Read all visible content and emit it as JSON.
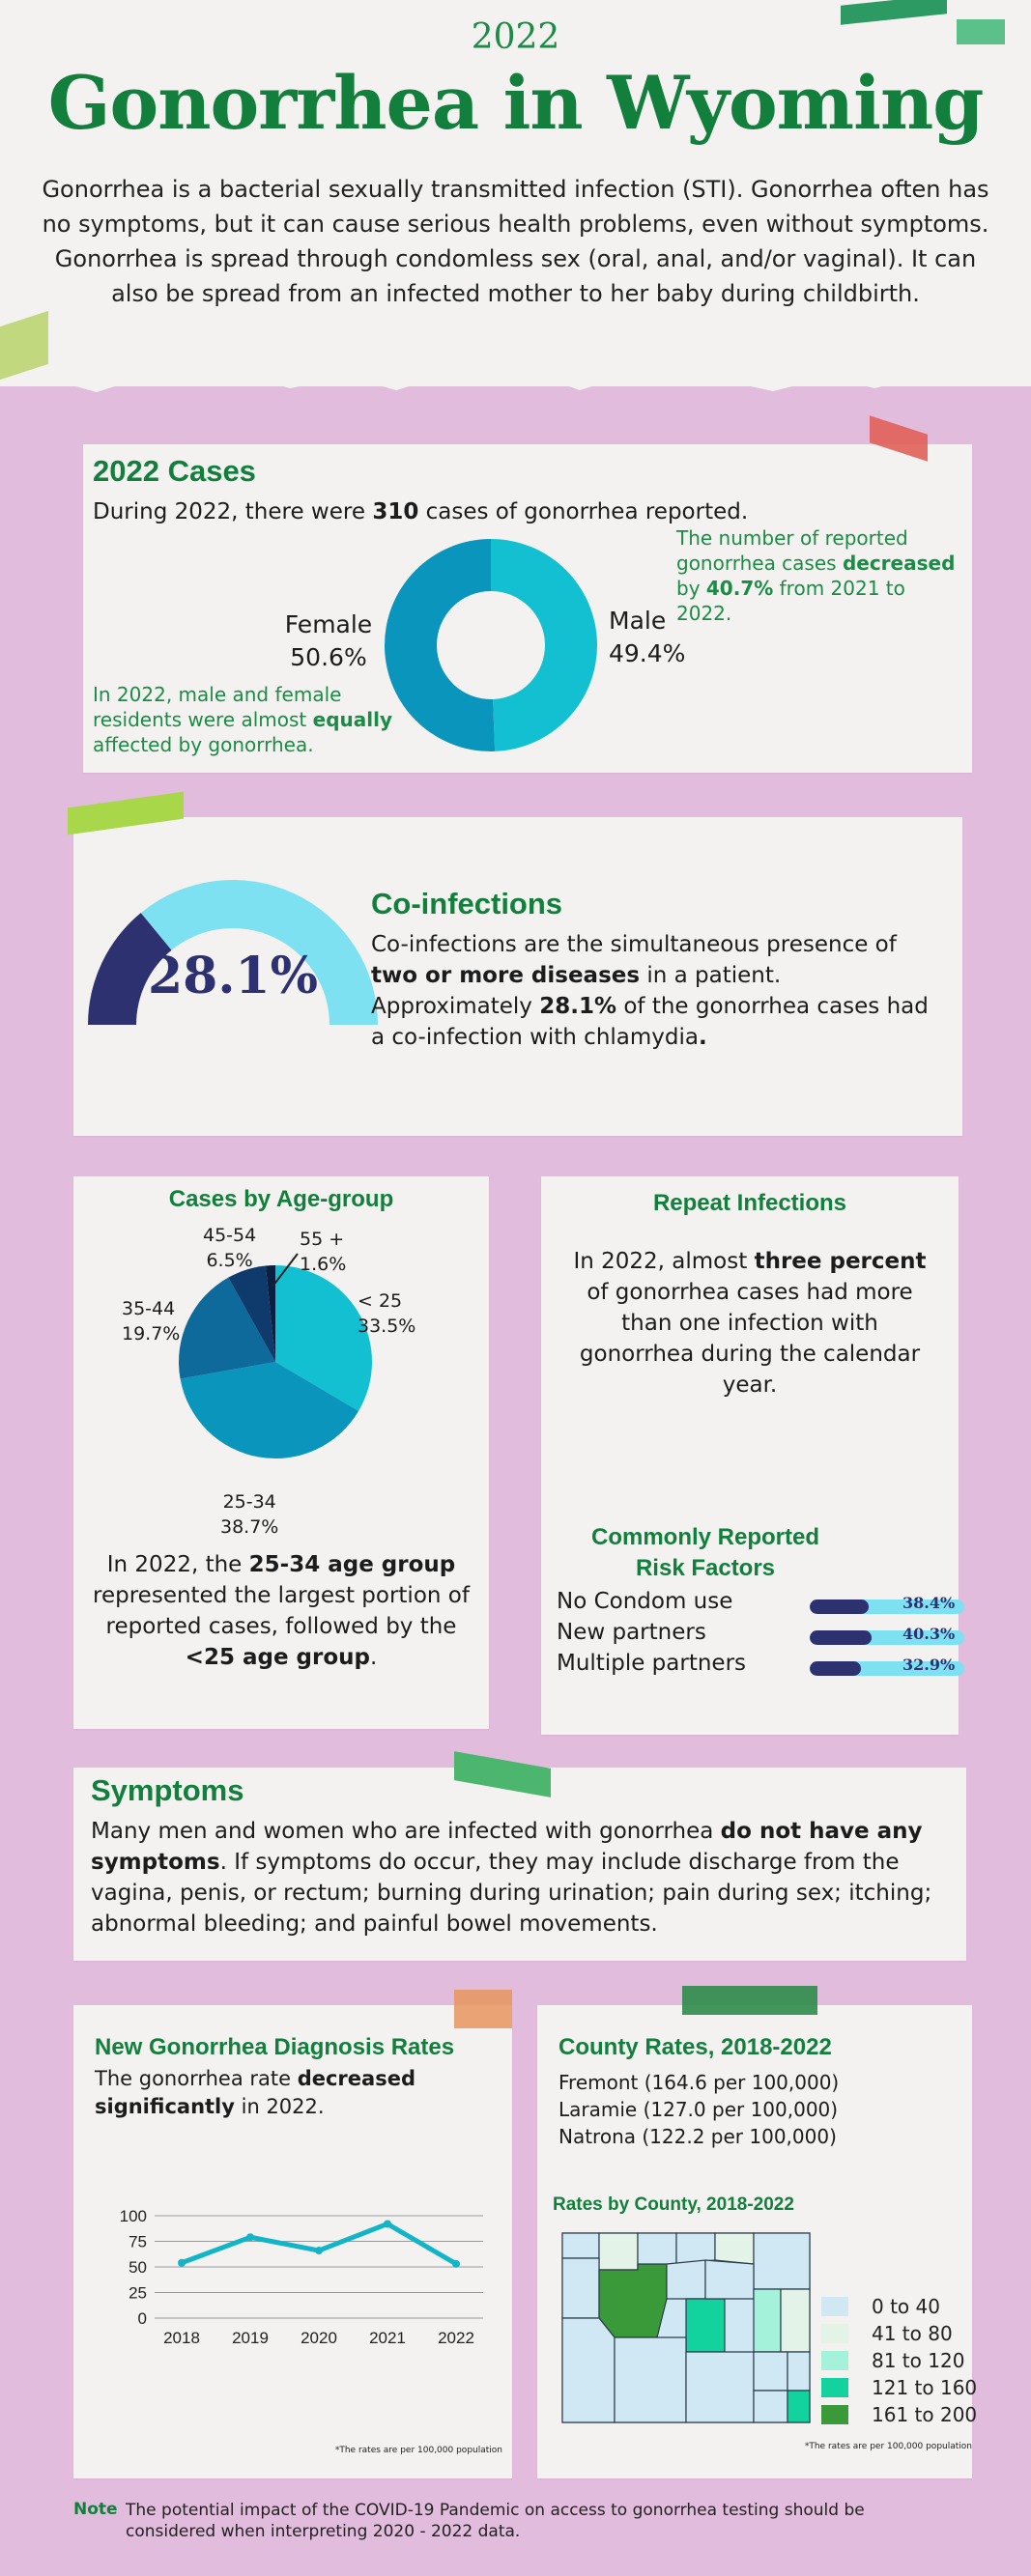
{
  "header": {
    "year": "2022",
    "title": "Gonorrhea in Wyoming",
    "intro": "Gonorrhea is a bacterial sexually transmitted infection (STI). Gonorrhea often has no symptoms, but it can cause serious health problems, even without symptoms. Gonorrhea is spread through condomless sex (oral, anal, and/or vaginal). It can also be spread from an infected mother to her baby during childbirth."
  },
  "cases": {
    "heading": "2022 Cases",
    "line_pre": "During 2022, there were ",
    "line_num": "310",
    "line_post": " cases of gonorrhea  reported.",
    "decrease_pre": "The number of reported gonorrhea cases ",
    "decrease_bold": "decreased",
    "decrease_mid": " by ",
    "decrease_pct": "40.7%",
    "decrease_post": " from 2021 to 2022.",
    "female_label": "Female",
    "female_value": "50.6%",
    "male_label": "Male",
    "male_value": "49.4%",
    "equal_pre": "In 2022, male and female residents were almost ",
    "equal_bold": "equally",
    "equal_post": " affected by gonorrhea.",
    "female_pct": 50.6,
    "male_pct": 49.4,
    "colors": {
      "female": "#0a95bd",
      "male": "#12c0d2"
    }
  },
  "coinfections": {
    "heading": "Co-infections",
    "gauge_value_text": "28.1%",
    "gauge_pct": 28.1,
    "p1": "Co-infections are the simultaneous presence of ",
    "p1_bold": "two or more diseases",
    "p2": " in a patient. Approximately ",
    "p2_bold": "28.1%",
    "p3": " of the gonorrhea cases had a co-infection with chlamydia",
    "p3_end": ".",
    "colors": {
      "filled": "#2e3170",
      "rest": "#7ee1f2"
    }
  },
  "age": {
    "heading": "Cases by Age-group",
    "groups": [
      {
        "label": "< 25",
        "value": "33.5%",
        "pct": 33.5,
        "color": "#12c0d2"
      },
      {
        "label": "25-34",
        "value": "38.7%",
        "pct": 38.7,
        "color": "#0a95bd"
      },
      {
        "label": "35-44",
        "value": "19.7%",
        "pct": 19.7,
        "color": "#0d6a9a"
      },
      {
        "label": "45-54",
        "value": "6.5%",
        "pct": 6.5,
        "color": "#0f3b6c"
      },
      {
        "label": "55 +",
        "value": "1.6%",
        "pct": 1.6,
        "color": "#0b1f40"
      }
    ],
    "text_pre": "In 2022, the ",
    "text_b1": "25-34 age group",
    "text_mid": " represented the largest portion of reported cases, followed by the ",
    "text_b2": "<25 age group",
    "text_end": "."
  },
  "repeat": {
    "heading": "Repeat Infections",
    "t1": "In 2022, almost ",
    "t_bold": "three percent",
    "t2": " of gonorrhea cases had more than one infection with gonorrhea during the calendar year."
  },
  "risk": {
    "heading_l1": "Commonly Reported",
    "heading_l2": "Risk Factors",
    "items": [
      {
        "label": "No Condom use",
        "value": "38.4%",
        "pct": 38.4
      },
      {
        "label": "New partners",
        "value": "40.3%",
        "pct": 40.3
      },
      {
        "label": "Multiple partners",
        "value": "32.9%",
        "pct": 32.9
      }
    ]
  },
  "symptoms": {
    "heading": "Symptoms",
    "t1": "Many men and women who are infected with gonorrhea ",
    "t_bold": "do not have any symptoms",
    "t2": ". If symptoms do occur, they may include discharge from the vagina, penis, or rectum; burning during urination; pain during sex;  itching; abnormal bleeding; and painful bowel movements."
  },
  "rates": {
    "heading": "New Gonorrhea Diagnosis Rates",
    "t1": "The gonorrhea rate ",
    "t_bold": "decreased significantly",
    "t2": " in 2022.",
    "footnote": "*The rates are per 100,000 population"
  },
  "chart_data": {
    "type": "line",
    "x": [
      "2018",
      "2019",
      "2020",
      "2021",
      "2022"
    ],
    "series": [
      {
        "values": [
          54,
          79,
          66,
          92,
          53
        ]
      }
    ],
    "ylim": [
      0,
      100
    ],
    "yticks": [
      "0",
      "25",
      "50",
      "75",
      "100"
    ],
    "color": "#12b5c8"
  },
  "county": {
    "heading": "County Rates, 2018-2022",
    "items": [
      "Fremont (164.6 per 100,000)",
      "Laramie (127.0 per 100,000)",
      "Natrona (122.2 per 100,000)"
    ],
    "map_heading": "Rates by County, 2018-2022",
    "legend": [
      {
        "label": "0 to 40",
        "color": "#cfe8f4"
      },
      {
        "label": "41 to 80",
        "color": "#e3f3e8"
      },
      {
        "label": "81 to 120",
        "color": "#a3f2d9"
      },
      {
        "label": "121 to 160",
        "color": "#12d39e"
      },
      {
        "label": "161 to 200",
        "color": "#3a9a3a"
      }
    ],
    "footnote": "*The rates are per 100,000 population"
  },
  "note": {
    "label": "Note",
    "text": "The potential impact of the COVID-19 Pandemic on access to gonorrhea testing should be considered when interpreting 2020 - 2022 data."
  }
}
